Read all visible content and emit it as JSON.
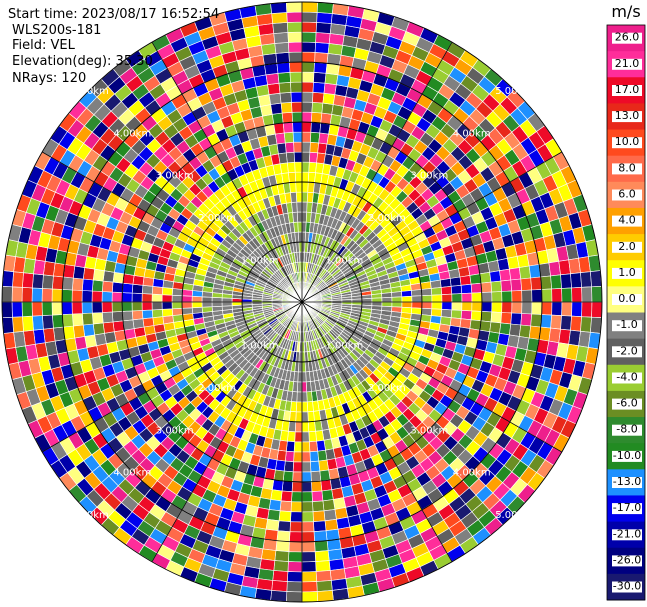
{
  "header": {
    "start_time": "Start time: 2023/08/17 16:52:54",
    "instrument": "WLS200s-181",
    "field": "Field: VEL",
    "elevation": "Elevation(deg): 35.30",
    "nrays": "NRays: 120"
  },
  "colorbar": {
    "unit": "m/s",
    "ticks": [
      "26.0",
      "21.0",
      "17.0",
      "13.0",
      "10.0",
      "8.0",
      "6.0",
      "4.0",
      "2.0",
      "1.0",
      "0.0",
      "-1.0",
      "-2.0",
      "-4.0",
      "-6.0",
      "-8.0",
      "-10.0",
      "-13.0",
      "-17.0",
      "-21.0",
      "-26.0",
      "-30.0"
    ],
    "colors": [
      "#ee1f8c",
      "#ff2d9a",
      "#ee0a28",
      "#e8281a",
      "#ff4a1e",
      "#ff6a4a",
      "#ff8a5a",
      "#ffa000",
      "#ffcc00",
      "#ffff00",
      "#ffff80",
      "#808080",
      "#606060",
      "#9acd32",
      "#6b8e23",
      "#2e8b2e",
      "#228b22",
      "#1e90ff",
      "#0000ee",
      "#0000aa",
      "#000080",
      "#191970"
    ]
  },
  "chart_data": {
    "type": "heatmap",
    "projection": "polar-ppi",
    "field": "VEL",
    "units": "m/s",
    "nrays": 120,
    "range_rings_km": [
      1.0,
      2.0,
      3.0,
      4.0,
      5.0
    ],
    "ring_labels": [
      "1.00km",
      "2.00km",
      "3.00km",
      "4.00km",
      "5.00km"
    ],
    "max_range_km": 5.0,
    "ngates": 30,
    "value_range": [
      -30,
      30
    ],
    "structure": {
      "inner_zone_km": [
        0,
        1.7
      ],
      "inner_values": "mixed 0.0 (gray) and -1.0 to -2.0 (olive green), near zero",
      "yellow_band_km": [
        1.4,
        2.4
      ],
      "yellow_band_values": "1.0 to 2.0, strongest toward north and south",
      "outer_zone_km": [
        2.4,
        5.0
      ],
      "outer_values": "noisy, full range -30 to 26"
    }
  }
}
